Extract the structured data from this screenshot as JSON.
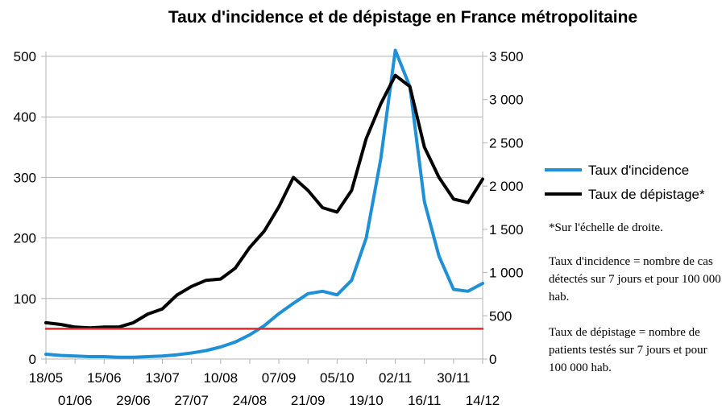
{
  "chart_data": {
    "type": "line",
    "title": "Taux d'incidence et de dépistage en France métropolitaine",
    "x_start_label": "18/05",
    "x_end_label": "14/12",
    "x_ticks_upper": [
      "18/05",
      "15/06",
      "13/07",
      "10/08",
      "07/09",
      "05/10",
      "02/11",
      "30/11"
    ],
    "x_ticks_lower": [
      "01/06",
      "29/06",
      "27/07",
      "24/08",
      "21/09",
      "19/10",
      "16/11",
      "14/12"
    ],
    "y_left": {
      "min": 0,
      "max": 500,
      "ticks": [
        "0",
        "100",
        "200",
        "300",
        "400",
        "500"
      ]
    },
    "y_right": {
      "min": 0,
      "max": 3500,
      "ticks": [
        "0",
        "500",
        "1 000",
        "1 500",
        "2 000",
        "2 500",
        "3 000",
        "3 500"
      ]
    },
    "grid": "horizontal",
    "legend_position": "right",
    "series": [
      {
        "name": "Taux d'incidence",
        "axis": "left",
        "color": "#1f8fd6",
        "points": [
          [
            "18/05",
            8
          ],
          [
            "25/05",
            6
          ],
          [
            "01/06",
            5
          ],
          [
            "08/06",
            4
          ],
          [
            "15/06",
            4
          ],
          [
            "22/06",
            3
          ],
          [
            "29/06",
            3
          ],
          [
            "06/07",
            4
          ],
          [
            "13/07",
            5
          ],
          [
            "20/07",
            7
          ],
          [
            "27/07",
            10
          ],
          [
            "03/08",
            14
          ],
          [
            "10/08",
            20
          ],
          [
            "17/08",
            28
          ],
          [
            "24/08",
            40
          ],
          [
            "31/08",
            55
          ],
          [
            "07/09",
            75
          ],
          [
            "14/09",
            92
          ],
          [
            "21/09",
            108
          ],
          [
            "28/09",
            112
          ],
          [
            "05/10",
            106
          ],
          [
            "12/10",
            130
          ],
          [
            "19/10",
            200
          ],
          [
            "26/10",
            330
          ],
          [
            "02/11",
            510
          ],
          [
            "09/11",
            450
          ],
          [
            "16/11",
            260
          ],
          [
            "23/11",
            170
          ],
          [
            "30/11",
            115
          ],
          [
            "07/12",
            112
          ],
          [
            "14/12",
            125
          ]
        ]
      },
      {
        "name": "Taux de dépistage*",
        "axis": "right",
        "color": "#000000",
        "points": [
          [
            "18/05",
            420
          ],
          [
            "25/05",
            400
          ],
          [
            "01/06",
            370
          ],
          [
            "08/06",
            360
          ],
          [
            "15/06",
            370
          ],
          [
            "22/06",
            370
          ],
          [
            "29/06",
            420
          ],
          [
            "06/07",
            520
          ],
          [
            "13/07",
            580
          ],
          [
            "20/07",
            740
          ],
          [
            "27/07",
            840
          ],
          [
            "03/08",
            910
          ],
          [
            "10/08",
            925
          ],
          [
            "17/08",
            1050
          ],
          [
            "24/08",
            1290
          ],
          [
            "31/08",
            1480
          ],
          [
            "07/09",
            1760
          ],
          [
            "14/09",
            2100
          ],
          [
            "21/09",
            1950
          ],
          [
            "28/09",
            1750
          ],
          [
            "05/10",
            1700
          ],
          [
            "12/10",
            1950
          ],
          [
            "19/10",
            2550
          ],
          [
            "26/10",
            2950
          ],
          [
            "02/11",
            3280
          ],
          [
            "09/11",
            3150
          ],
          [
            "16/11",
            2450
          ],
          [
            "23/11",
            2100
          ],
          [
            "30/11",
            1850
          ],
          [
            "07/12",
            1810
          ],
          [
            "14/12",
            2080
          ]
        ]
      },
      {
        "name": "",
        "axis": "left",
        "color": "#e8262a",
        "points": [
          [
            "18/05",
            50
          ],
          [
            "14/12",
            50
          ]
        ]
      }
    ]
  },
  "legend": [
    {
      "label": "Taux d'incidence",
      "color": "#1f8fd6"
    },
    {
      "label": "Taux de dépistage*",
      "color": "#000000"
    }
  ],
  "notes": [
    "*Sur l'échelle de droite.",
    "Taux d'incidence = nombre de cas détectés sur 7 jours et pour 100 000 hab.",
    "Taux de dépistage = nombre de patients testés sur 7 jours et pour 100 000 hab."
  ]
}
